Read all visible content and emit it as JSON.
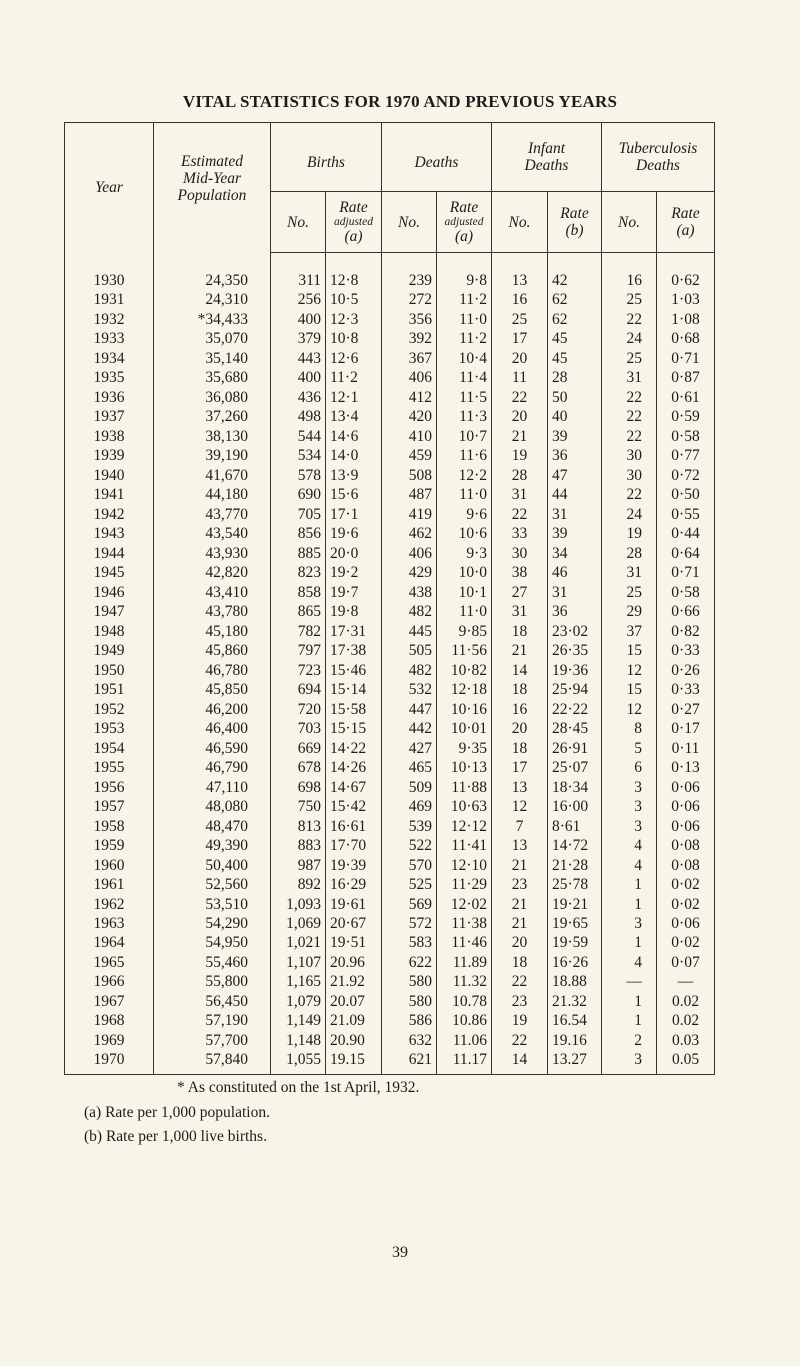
{
  "title": "VITAL STATISTICS FOR 1970 AND PREVIOUS YEARS",
  "headers": {
    "year": "Year",
    "population": [
      "Estimated",
      "Mid-Year",
      "Population"
    ],
    "births": "Births",
    "deaths": "Deaths",
    "infant_deaths": [
      "Infant",
      "Deaths"
    ],
    "tb_deaths": [
      "Tuberculosis",
      "Deaths"
    ],
    "no": "No.",
    "rate": "Rate",
    "adjusted": "adjusted",
    "a": "(a)",
    "b": "(b)"
  },
  "rows": [
    [
      "1930",
      "24,350",
      "311",
      "12·8",
      "239",
      "9·8",
      "13",
      "42",
      "16",
      "0·62"
    ],
    [
      "1931",
      "24,310",
      "256",
      "10·5",
      "272",
      "11·2",
      "16",
      "62",
      "25",
      "1·03"
    ],
    [
      "1932",
      "*34,433",
      "400",
      "12·3",
      "356",
      "11·0",
      "25",
      "62",
      "22",
      "1·08"
    ],
    [
      "1933",
      "35,070",
      "379",
      "10·8",
      "392",
      "11·2",
      "17",
      "45",
      "24",
      "0·68"
    ],
    [
      "1934",
      "35,140",
      "443",
      "12·6",
      "367",
      "10·4",
      "20",
      "45",
      "25",
      "0·71"
    ],
    [
      "1935",
      "35,680",
      "400",
      "11·2",
      "406",
      "11·4",
      "11",
      "28",
      "31",
      "0·87"
    ],
    [
      "1936",
      "36,080",
      "436",
      "12·1",
      "412",
      "11·5",
      "22",
      "50",
      "22",
      "0·61"
    ],
    [
      "1937",
      "37,260",
      "498",
      "13·4",
      "420",
      "11·3",
      "20",
      "40",
      "22",
      "0·59"
    ],
    [
      "1938",
      "38,130",
      "544",
      "14·6",
      "410",
      "10·7",
      "21",
      "39",
      "22",
      "0·58"
    ],
    [
      "1939",
      "39,190",
      "534",
      "14·0",
      "459",
      "11·6",
      "19",
      "36",
      "30",
      "0·77"
    ],
    [
      "1940",
      "41,670",
      "578",
      "13·9",
      "508",
      "12·2",
      "28",
      "47",
      "30",
      "0·72"
    ],
    [
      "1941",
      "44,180",
      "690",
      "15·6",
      "487",
      "11·0",
      "31",
      "44",
      "22",
      "0·50"
    ],
    [
      "1942",
      "43,770",
      "705",
      "17·1",
      "419",
      "9·6",
      "22",
      "31",
      "24",
      "0·55"
    ],
    [
      "1943",
      "43,540",
      "856",
      "19·6",
      "462",
      "10·6",
      "33",
      "39",
      "19",
      "0·44"
    ],
    [
      "1944",
      "43,930",
      "885",
      "20·0",
      "406",
      "9·3",
      "30",
      "34",
      "28",
      "0·64"
    ],
    [
      "1945",
      "42,820",
      "823",
      "19·2",
      "429",
      "10·0",
      "38",
      "46",
      "31",
      "0·71"
    ],
    [
      "1946",
      "43,410",
      "858",
      "19·7",
      "438",
      "10·1",
      "27",
      "31",
      "25",
      "0·58"
    ],
    [
      "1947",
      "43,780",
      "865",
      "19·8",
      "482",
      "11·0",
      "31",
      "36",
      "29",
      "0·66"
    ],
    [
      "1948",
      "45,180",
      "782",
      "17·31",
      "445",
      "9·85",
      "18",
      "23·02",
      "37",
      "0·82"
    ],
    [
      "1949",
      "45,860",
      "797",
      "17·38",
      "505",
      "11·56",
      "21",
      "26·35",
      "15",
      "0·33"
    ],
    [
      "1950",
      "46,780",
      "723",
      "15·46",
      "482",
      "10·82",
      "14",
      "19·36",
      "12",
      "0·26"
    ],
    [
      "1951",
      "45,850",
      "694",
      "15·14",
      "532",
      "12·18",
      "18",
      "25·94",
      "15",
      "0·33"
    ],
    [
      "1952",
      "46,200",
      "720",
      "15·58",
      "447",
      "10·16",
      "16",
      "22·22",
      "12",
      "0·27"
    ],
    [
      "1953",
      "46,400",
      "703",
      "15·15",
      "442",
      "10·01",
      "20",
      "28·45",
      "8",
      "0·17"
    ],
    [
      "1954",
      "46,590",
      "669",
      "14·22",
      "427",
      "9·35",
      "18",
      "26·91",
      "5",
      "0·11"
    ],
    [
      "1955",
      "46,790",
      "678",
      "14·26",
      "465",
      "10·13",
      "17",
      "25·07",
      "6",
      "0·13"
    ],
    [
      "1956",
      "47,110",
      "698",
      "14·67",
      "509",
      "11·88",
      "13",
      "18·34",
      "3",
      "0·06"
    ],
    [
      "1957",
      "48,080",
      "750",
      "15·42",
      "469",
      "10·63",
      "12",
      "16·00",
      "3",
      "0·06"
    ],
    [
      "1958",
      "48,470",
      "813",
      "16·61",
      "539",
      "12·12",
      "7",
      "8·61",
      "3",
      "0·06"
    ],
    [
      "1959",
      "49,390",
      "883",
      "17·70",
      "522",
      "11·41",
      "13",
      "14·72",
      "4",
      "0·08"
    ],
    [
      "1960",
      "50,400",
      "987",
      "19·39",
      "570",
      "12·10",
      "21",
      "21·28",
      "4",
      "0·08"
    ],
    [
      "1961",
      "52,560",
      "892",
      "16·29",
      "525",
      "11·29",
      "23",
      "25·78",
      "1",
      "0·02"
    ],
    [
      "1962",
      "53,510",
      "1,093",
      "19·61",
      "569",
      "12·02",
      "21",
      "19·21",
      "1",
      "0·02"
    ],
    [
      "1963",
      "54,290",
      "1,069",
      "20·67",
      "572",
      "11·38",
      "21",
      "19·65",
      "3",
      "0·06"
    ],
    [
      "1964",
      "54,950",
      "1,021",
      "19·51",
      "583",
      "11·46",
      "20",
      "19·59",
      "1",
      "0·02"
    ],
    [
      "1965",
      "55,460",
      "1,107",
      "20.96",
      "622",
      "11.89",
      "18",
      "16·26",
      "4",
      "0·07"
    ],
    [
      "1966",
      "55,800",
      "1,165",
      "21.92",
      "580",
      "11.32",
      "22",
      "18.88",
      "—",
      "—"
    ],
    [
      "1967",
      "56,450",
      "1,079",
      "20.07",
      "580",
      "10.78",
      "23",
      "21.32",
      "1",
      "0.02"
    ],
    [
      "1968",
      "57,190",
      "1,149",
      "21.09",
      "586",
      "10.86",
      "19",
      "16.54",
      "1",
      "0.02"
    ],
    [
      "1969",
      "57,700",
      "1,148",
      "20.90",
      "632",
      "11.06",
      "22",
      "19.16",
      "2",
      "0.03"
    ],
    [
      "1970",
      "57,840",
      "1,055",
      "19.15",
      "621",
      "11.17",
      "14",
      "13.27",
      "3",
      "0.05"
    ]
  ],
  "footnotes": [
    "* As constituted on the 1st April, 1932.",
    "(a) Rate per 1,000 population.",
    "(b) Rate per 1,000 live births."
  ],
  "page_number": "39"
}
